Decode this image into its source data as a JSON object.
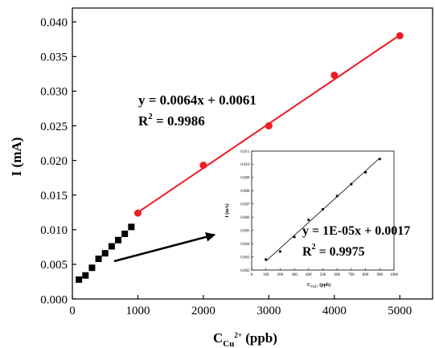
{
  "chart_data": [
    {
      "type": "scatter",
      "xlabel": {
        "main": "C",
        "subscript": "Cu",
        "superscript": "2+",
        "unit": " (ppb)"
      },
      "ylabel": "I (mA)",
      "xlim": [
        0,
        5500
      ],
      "ylim": [
        0,
        0.042
      ],
      "x_ticks": [
        {
          "value": 0,
          "label": "0"
        },
        {
          "value": 1000,
          "label": "1000"
        },
        {
          "value": 2000,
          "label": "2000"
        },
        {
          "value": 3000,
          "label": "3000"
        },
        {
          "value": 4000,
          "label": "4000"
        },
        {
          "value": 5000,
          "label": "5000"
        }
      ],
      "y_ticks": [
        {
          "value": 0,
          "label": "0.000"
        },
        {
          "value": 0.005,
          "label": "0.005"
        },
        {
          "value": 0.01,
          "label": "0.010"
        },
        {
          "value": 0.015,
          "label": "0.015"
        },
        {
          "value": 0.02,
          "label": "0.020"
        },
        {
          "value": 0.025,
          "label": "0.025"
        },
        {
          "value": 0.03,
          "label": "0.030"
        },
        {
          "value": 0.035,
          "label": "0.035"
        },
        {
          "value": 0.04,
          "label": "0.040"
        }
      ],
      "series": [
        {
          "marker": "square",
          "color": "#000000",
          "x": [
            100,
            200,
            300,
            400,
            500,
            600,
            700,
            800,
            900
          ],
          "y": [
            0.0028,
            0.0034,
            0.0045,
            0.0058,
            0.0066,
            0.0076,
            0.0085,
            0.0094,
            0.0104
          ]
        },
        {
          "marker": "circle",
          "color": "#ee1c25",
          "x": [
            1000,
            2000,
            3000,
            4000,
            5000
          ],
          "y": [
            0.0124,
            0.0193,
            0.025,
            0.0323,
            0.038
          ]
        }
      ],
      "fit_line": {
        "color": "#ee1c25",
        "slope": 0.0064,
        "intercept": 0.0061,
        "x_range": [
          1000,
          5000
        ],
        "slope_per_ppb": 6.4e-06
      },
      "annotation": {
        "equation": "y = 0.0064x + 0.0061",
        "r2_prefix": "R",
        "r2_sup": "2",
        "r2_value": " = 0.9986"
      },
      "arrow": true
    },
    {
      "type": "scatter",
      "inset": true,
      "xlabel": {
        "main": "C",
        "subscript": "Cu2+",
        "unit": " (ppb)"
      },
      "ylabel": "I (mA)",
      "xlim": [
        0,
        1000
      ],
      "ylim": [
        0.002,
        0.011
      ],
      "x_ticks": [
        {
          "value": 0,
          "label": "0"
        },
        {
          "value": 100,
          "label": "100"
        },
        {
          "value": 200,
          "label": "200"
        },
        {
          "value": 300,
          "label": "300"
        },
        {
          "value": 400,
          "label": "400"
        },
        {
          "value": 500,
          "label": "500"
        },
        {
          "value": 600,
          "label": "600"
        },
        {
          "value": 700,
          "label": "700"
        },
        {
          "value": 800,
          "label": "800"
        },
        {
          "value": 900,
          "label": "900"
        },
        {
          "value": 1000,
          "label": "1000"
        }
      ],
      "y_ticks": [
        {
          "value": 0.002,
          "label": "0.002"
        },
        {
          "value": 0.003,
          "label": "0.003"
        },
        {
          "value": 0.004,
          "label": "0.004"
        },
        {
          "value": 0.005,
          "label": "0.005"
        },
        {
          "value": 0.006,
          "label": "0.006"
        },
        {
          "value": 0.007,
          "label": "0.007"
        },
        {
          "value": 0.008,
          "label": "0.008"
        },
        {
          "value": 0.009,
          "label": "0.009"
        },
        {
          "value": 0.01,
          "label": "0.010"
        },
        {
          "value": 0.011,
          "label": "0.011"
        }
      ],
      "series": [
        {
          "marker": "square",
          "color": "#000000",
          "x": [
            100,
            200,
            300,
            400,
            500,
            600,
            700,
            800,
            900
          ],
          "y": [
            0.0028,
            0.0034,
            0.0045,
            0.0058,
            0.0066,
            0.0076,
            0.0085,
            0.0094,
            0.0104
          ]
        }
      ],
      "fit_line": {
        "color": "#000000",
        "slope": 1e-05,
        "intercept": 0.0017,
        "x_range": [
          100,
          900
        ],
        "slope_per_ppb": 9.75e-06
      },
      "annotation": {
        "equation": "y = 1E-05x + 0.0017",
        "r2_prefix": "R",
        "r2_sup": "2",
        "r2_value": " = 0.9975"
      }
    }
  ]
}
